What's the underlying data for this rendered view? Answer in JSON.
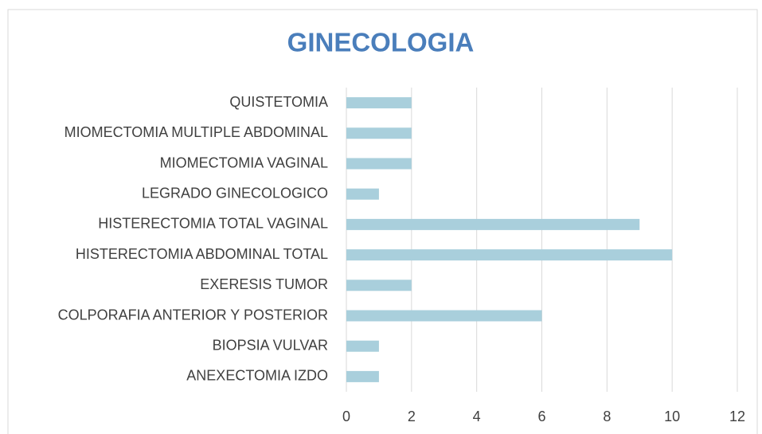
{
  "chart_data": {
    "type": "bar",
    "orientation": "horizontal",
    "title": "GINECOLOGIA",
    "categories": [
      "QUISTETOMIA",
      "MIOMECTOMIA MULTIPLE ABDOMINAL",
      "MIOMECTOMIA VAGINAL",
      "LEGRADO GINECOLOGICO",
      "HISTERECTOMIA TOTAL VAGINAL",
      "HISTERECTOMIA ABDOMINAL TOTAL",
      "EXERESIS TUMOR",
      "COLPORAFIA ANTERIOR Y POSTERIOR",
      "BIOPSIA VULVAR",
      "ANEXECTOMIA IZDO"
    ],
    "values": [
      2,
      2,
      2,
      1,
      9,
      10,
      2,
      6,
      1,
      1
    ],
    "color": "#a9cfdc",
    "xlim": [
      0,
      12
    ],
    "xticks": [
      0,
      2,
      4,
      6,
      8,
      10,
      12
    ],
    "grid": true
  }
}
